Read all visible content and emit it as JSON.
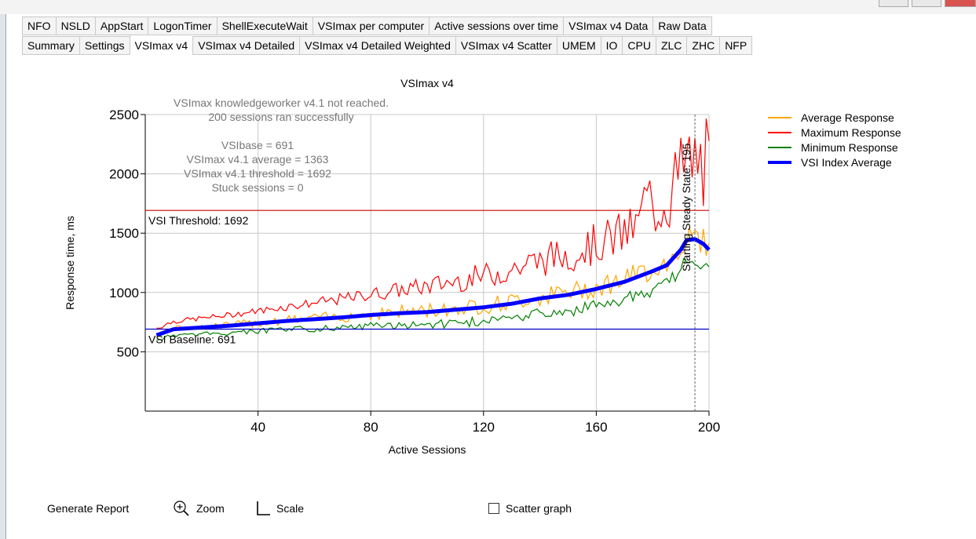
{
  "tabs_row1": [
    "NFO",
    "NSLD",
    "AppStart",
    "LogonTimer",
    "ShellExecuteWait",
    "VSImax per computer",
    "Active sessions over time",
    "VSImax v4 Data",
    "Raw Data"
  ],
  "tabs_row2": [
    "Summary",
    "Settings",
    "VSImax v4",
    "VSImax v4 Detailed",
    "VSImax v4 Detailed Weighted",
    "VSImax v4 Scatter",
    "UMEM",
    "IO",
    "CPU",
    "ZLC",
    "ZHC",
    "NFP"
  ],
  "active_tab": "VSImax v4",
  "chart_data": {
    "type": "line",
    "title": "VSImax v4",
    "xlabel": "Active Sessions",
    "ylabel": "Response time, ms",
    "xlim": [
      0,
      200
    ],
    "ylim": [
      0,
      2500
    ],
    "x_ticks": [
      40,
      80,
      120,
      160,
      200
    ],
    "y_ticks": [
      500,
      1000,
      1500,
      2000,
      2500
    ],
    "grid": true,
    "legend_position": "top-right",
    "info_text": [
      "VSImax knowledgeworker v4.1 not reached.",
      "200 sessions ran successfully",
      "VSIbase = 691",
      "VSImax v4.1 average = 1363",
      "VSImax v4.1 threshold = 1692",
      "Stuck sessions = 0"
    ],
    "threshold_line": {
      "label": "VSI Threshold: 1692",
      "value": 1692,
      "color": "#cc0000"
    },
    "baseline_line": {
      "label": "VSI Baseline: 691",
      "value": 691,
      "color": "#0000cc"
    },
    "steady_state_line": {
      "label": "Starting Steady State: 195",
      "x": 195
    },
    "series": [
      {
        "name": "Average Response",
        "color": "#ffa500"
      },
      {
        "name": "Maximum Response",
        "color": "#ff0000"
      },
      {
        "name": "Minimum Response",
        "color": "#008000"
      },
      {
        "name": "VSI Index Average",
        "color": "#0000ff"
      }
    ],
    "vsi_index_average": {
      "x": [
        4,
        10,
        20,
        30,
        40,
        50,
        60,
        70,
        80,
        90,
        100,
        110,
        120,
        130,
        140,
        150,
        160,
        170,
        180,
        185,
        190,
        192,
        195,
        198,
        200
      ],
      "y": [
        640,
        690,
        705,
        720,
        740,
        760,
        775,
        790,
        810,
        825,
        835,
        855,
        875,
        905,
        950,
        980,
        1030,
        1090,
        1180,
        1230,
        1360,
        1440,
        1450,
        1410,
        1360
      ]
    }
  },
  "toolbar": {
    "generate_report": "Generate Report",
    "zoom": "Zoom",
    "scale": "Scale",
    "scatter_graph": "Scatter graph"
  }
}
